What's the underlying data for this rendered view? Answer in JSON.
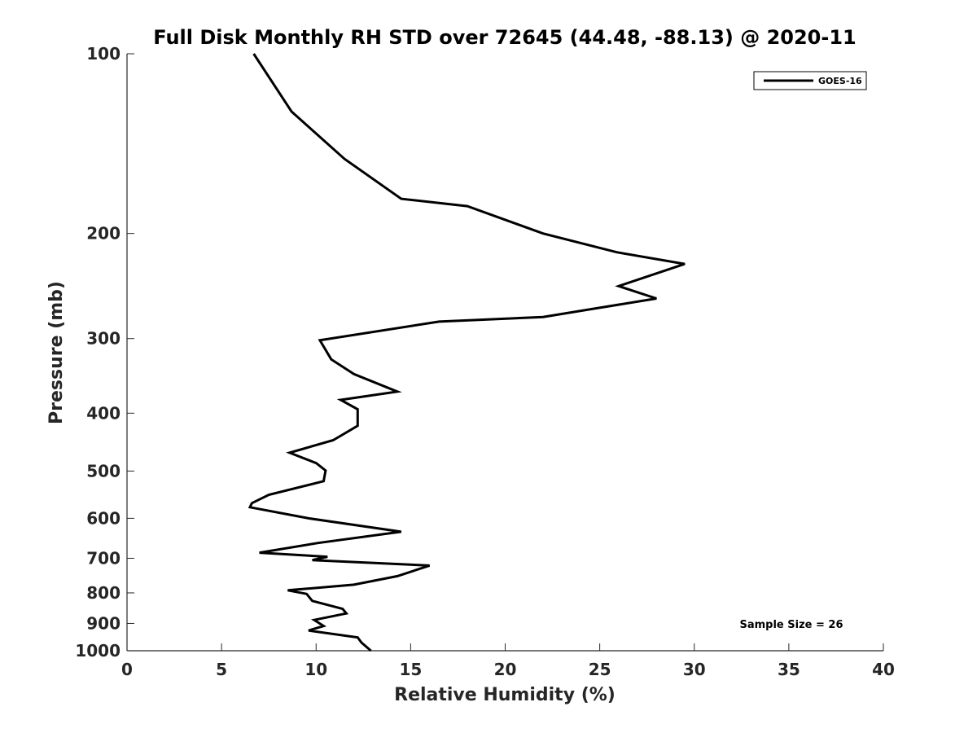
{
  "chart_data": {
    "type": "line",
    "title": "Full Disk Monthly RH STD over 72645 (44.48, -88.13) @ 2020-11",
    "xlabel": "Relative Humidity (%)",
    "ylabel": "Pressure (mb)",
    "xlim": [
      0,
      40
    ],
    "ylim": [
      100,
      1000
    ],
    "y_scale": "log",
    "y_reversed": true,
    "x_ticks": [
      0,
      5,
      10,
      15,
      20,
      25,
      30,
      35,
      40
    ],
    "y_ticks": [
      100,
      200,
      300,
      400,
      500,
      600,
      700,
      800,
      900,
      1000
    ],
    "grid": false,
    "legend_position": "top-right",
    "annotation": "Sample Size = 26",
    "series": [
      {
        "name": "GOES-16",
        "color": "#000000",
        "points": [
          [
            6.7,
            100
          ],
          [
            8.7,
            125
          ],
          [
            11.5,
            150
          ],
          [
            14.5,
            175
          ],
          [
            18.0,
            180
          ],
          [
            22.0,
            200
          ],
          [
            25.9,
            215
          ],
          [
            29.5,
            225
          ],
          [
            26.0,
            245
          ],
          [
            28.0,
            257
          ],
          [
            22.0,
            276
          ],
          [
            16.5,
            281
          ],
          [
            10.2,
            302
          ],
          [
            10.8,
            325
          ],
          [
            12.0,
            344
          ],
          [
            14.3,
            368
          ],
          [
            11.3,
            380
          ],
          [
            12.2,
            394
          ],
          [
            12.2,
            420
          ],
          [
            10.9,
            444
          ],
          [
            8.6,
            466
          ],
          [
            10.0,
            485
          ],
          [
            10.5,
            499
          ],
          [
            10.4,
            520
          ],
          [
            7.5,
            548
          ],
          [
            6.6,
            566
          ],
          [
            6.5,
            575
          ],
          [
            9.6,
            600
          ],
          [
            14.5,
            632
          ],
          [
            10.1,
            660
          ],
          [
            7.0,
            685
          ],
          [
            10.6,
            696
          ],
          [
            9.8,
            705
          ],
          [
            16.0,
            720
          ],
          [
            14.3,
            750
          ],
          [
            12.0,
            775
          ],
          [
            8.5,
            792
          ],
          [
            9.5,
            803
          ],
          [
            9.8,
            825
          ],
          [
            11.4,
            851
          ],
          [
            11.6,
            866
          ],
          [
            9.9,
            888
          ],
          [
            10.4,
            909
          ],
          [
            9.6,
            925
          ],
          [
            12.2,
            950
          ],
          [
            12.4,
            969
          ],
          [
            12.9,
            1000
          ]
        ]
      }
    ]
  }
}
